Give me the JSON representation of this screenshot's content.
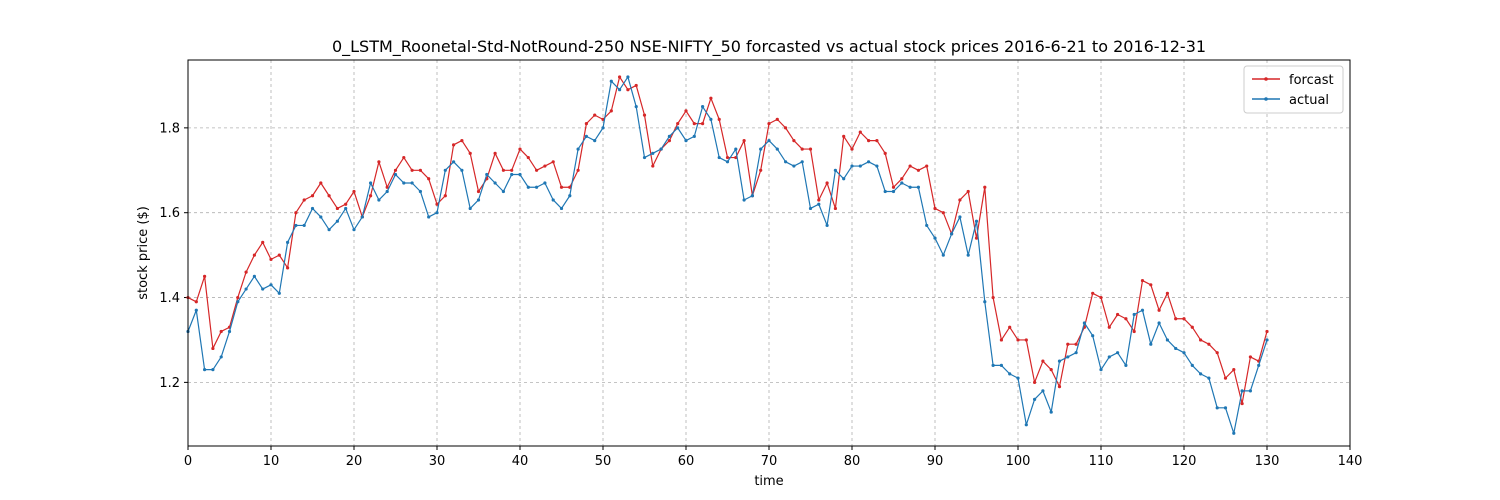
{
  "chart_data": {
    "type": "line",
    "title": "0_LSTM_Roonetal-Std-NotRound-250 NSE-NIFTY_50 forcasted vs actual stock prices 2016-6-21 to 2016-12-31",
    "xlabel": "time",
    "ylabel": "stock price ($)",
    "xlim": [
      0,
      140
    ],
    "ylim": [
      1.05,
      1.96
    ],
    "xticks": [
      0,
      10,
      20,
      30,
      40,
      50,
      60,
      70,
      80,
      90,
      100,
      110,
      120,
      130,
      140
    ],
    "yticks": [
      1.2,
      1.4,
      1.6,
      1.8
    ],
    "grid": true,
    "legend_position": "top-right",
    "series": [
      {
        "name": "forcast",
        "color": "#d62728",
        "values": [
          1.4,
          1.39,
          1.45,
          1.28,
          1.32,
          1.33,
          1.4,
          1.46,
          1.5,
          1.53,
          1.49,
          1.5,
          1.47,
          1.6,
          1.63,
          1.64,
          1.67,
          1.64,
          1.61,
          1.62,
          1.65,
          1.59,
          1.64,
          1.72,
          1.66,
          1.7,
          1.73,
          1.7,
          1.7,
          1.68,
          1.62,
          1.64,
          1.76,
          1.77,
          1.74,
          1.65,
          1.68,
          1.74,
          1.7,
          1.7,
          1.75,
          1.73,
          1.7,
          1.71,
          1.72,
          1.66,
          1.66,
          1.7,
          1.81,
          1.83,
          1.82,
          1.84,
          1.92,
          1.89,
          1.9,
          1.83,
          1.71,
          1.75,
          1.77,
          1.81,
          1.84,
          1.81,
          1.81,
          1.87,
          1.82,
          1.73,
          1.73,
          1.77,
          1.64,
          1.7,
          1.81,
          1.82,
          1.8,
          1.77,
          1.75,
          1.75,
          1.63,
          1.67,
          1.61,
          1.78,
          1.75,
          1.79,
          1.77,
          1.77,
          1.74,
          1.66,
          1.68,
          1.71,
          1.7,
          1.71,
          1.61,
          1.6,
          1.55,
          1.63,
          1.65,
          1.54,
          1.66,
          1.4,
          1.3,
          1.33,
          1.3,
          1.3,
          1.2,
          1.25,
          1.23,
          1.19,
          1.29,
          1.29,
          1.33,
          1.41,
          1.4,
          1.33,
          1.36,
          1.35,
          1.32,
          1.44,
          1.43,
          1.37,
          1.41,
          1.35,
          1.35,
          1.33,
          1.3,
          1.29,
          1.27,
          1.21,
          1.23,
          1.15,
          1.26,
          1.25,
          1.32
        ]
      },
      {
        "name": "actual",
        "color": "#1f77b4",
        "values": [
          1.32,
          1.37,
          1.23,
          1.23,
          1.26,
          1.32,
          1.39,
          1.42,
          1.45,
          1.42,
          1.43,
          1.41,
          1.53,
          1.57,
          1.57,
          1.61,
          1.59,
          1.56,
          1.58,
          1.61,
          1.56,
          1.59,
          1.67,
          1.63,
          1.65,
          1.69,
          1.67,
          1.67,
          1.65,
          1.59,
          1.6,
          1.7,
          1.72,
          1.7,
          1.61,
          1.63,
          1.69,
          1.67,
          1.65,
          1.69,
          1.69,
          1.66,
          1.66,
          1.67,
          1.63,
          1.61,
          1.64,
          1.75,
          1.78,
          1.77,
          1.8,
          1.91,
          1.89,
          1.92,
          1.85,
          1.73,
          1.74,
          1.75,
          1.78,
          1.8,
          1.77,
          1.78,
          1.85,
          1.82,
          1.73,
          1.72,
          1.75,
          1.63,
          1.64,
          1.75,
          1.77,
          1.75,
          1.72,
          1.71,
          1.72,
          1.61,
          1.62,
          1.57,
          1.7,
          1.68,
          1.71,
          1.71,
          1.72,
          1.71,
          1.65,
          1.65,
          1.67,
          1.66,
          1.66,
          1.57,
          1.54,
          1.5,
          1.55,
          1.59,
          1.5,
          1.58,
          1.39,
          1.24,
          1.24,
          1.22,
          1.21,
          1.1,
          1.16,
          1.18,
          1.13,
          1.25,
          1.26,
          1.27,
          1.34,
          1.31,
          1.23,
          1.26,
          1.27,
          1.24,
          1.36,
          1.37,
          1.29,
          1.34,
          1.3,
          1.28,
          1.27,
          1.24,
          1.22,
          1.21,
          1.14,
          1.14,
          1.08,
          1.18,
          1.18,
          1.24,
          1.3
        ]
      }
    ]
  }
}
